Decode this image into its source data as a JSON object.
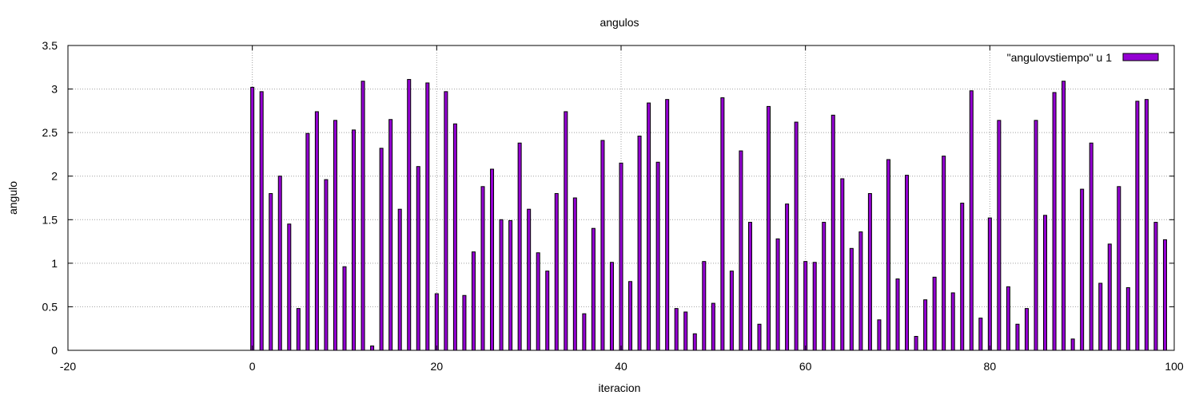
{
  "chart_data": {
    "type": "bar",
    "title": "angulos",
    "xlabel": "iteracion",
    "ylabel": "angulo",
    "xlim": [
      -20,
      100
    ],
    "ylim": [
      0,
      3.5
    ],
    "xticks": [
      -20,
      0,
      20,
      40,
      60,
      80,
      100
    ],
    "yticks": [
      0,
      0.5,
      1,
      1.5,
      2,
      2.5,
      3,
      3.5
    ],
    "grid": true,
    "legend_position": "top-right",
    "series": [
      {
        "name": "\"angulovstiempo\" u 1",
        "color": "#9400d3",
        "x": [
          0,
          1,
          2,
          3,
          4,
          5,
          6,
          7,
          8,
          9,
          10,
          11,
          12,
          13,
          14,
          15,
          16,
          17,
          18,
          19,
          20,
          21,
          22,
          23,
          24,
          25,
          26,
          27,
          28,
          29,
          30,
          31,
          32,
          33,
          34,
          35,
          36,
          37,
          38,
          39,
          40,
          41,
          42,
          43,
          44,
          45,
          46,
          47,
          48,
          49,
          50,
          51,
          52,
          53,
          54,
          55,
          56,
          57,
          58,
          59,
          60,
          61,
          62,
          63,
          64,
          65,
          66,
          67,
          68,
          69,
          70,
          71,
          72,
          73,
          74,
          75,
          76,
          77,
          78,
          79,
          80,
          81,
          82,
          83,
          84,
          85,
          86,
          87,
          88,
          89,
          90,
          91,
          92,
          93,
          94,
          95,
          96,
          97,
          98,
          99
        ],
        "values": [
          3.02,
          2.97,
          1.8,
          2.0,
          1.45,
          0.48,
          2.49,
          2.74,
          1.96,
          2.64,
          0.96,
          2.53,
          3.09,
          0.05,
          2.32,
          2.65,
          1.62,
          3.11,
          2.11,
          3.07,
          0.65,
          2.97,
          2.6,
          0.63,
          1.13,
          1.88,
          2.08,
          1.5,
          1.49,
          2.38,
          1.62,
          1.12,
          0.91,
          1.8,
          2.74,
          1.75,
          0.42,
          1.4,
          2.41,
          1.01,
          2.15,
          0.79,
          2.46,
          2.84,
          2.16,
          2.88,
          0.48,
          0.44,
          0.19,
          1.02,
          0.54,
          2.9,
          0.91,
          2.29,
          1.47,
          0.3,
          2.8,
          1.28,
          1.68,
          2.62,
          1.02,
          1.01,
          1.47,
          2.7,
          1.97,
          1.17,
          1.36,
          1.8,
          0.35,
          2.19,
          0.82,
          2.01,
          0.16,
          0.58,
          0.84,
          2.23,
          0.66,
          1.69,
          2.98,
          0.37,
          1.52,
          2.64,
          0.73,
          0.3,
          0.48,
          2.64,
          1.55,
          2.96,
          3.09,
          0.13,
          1.85,
          2.38,
          0.77,
          1.22,
          1.88,
          0.72,
          2.86,
          2.88,
          1.47,
          1.27
        ]
      }
    ]
  }
}
